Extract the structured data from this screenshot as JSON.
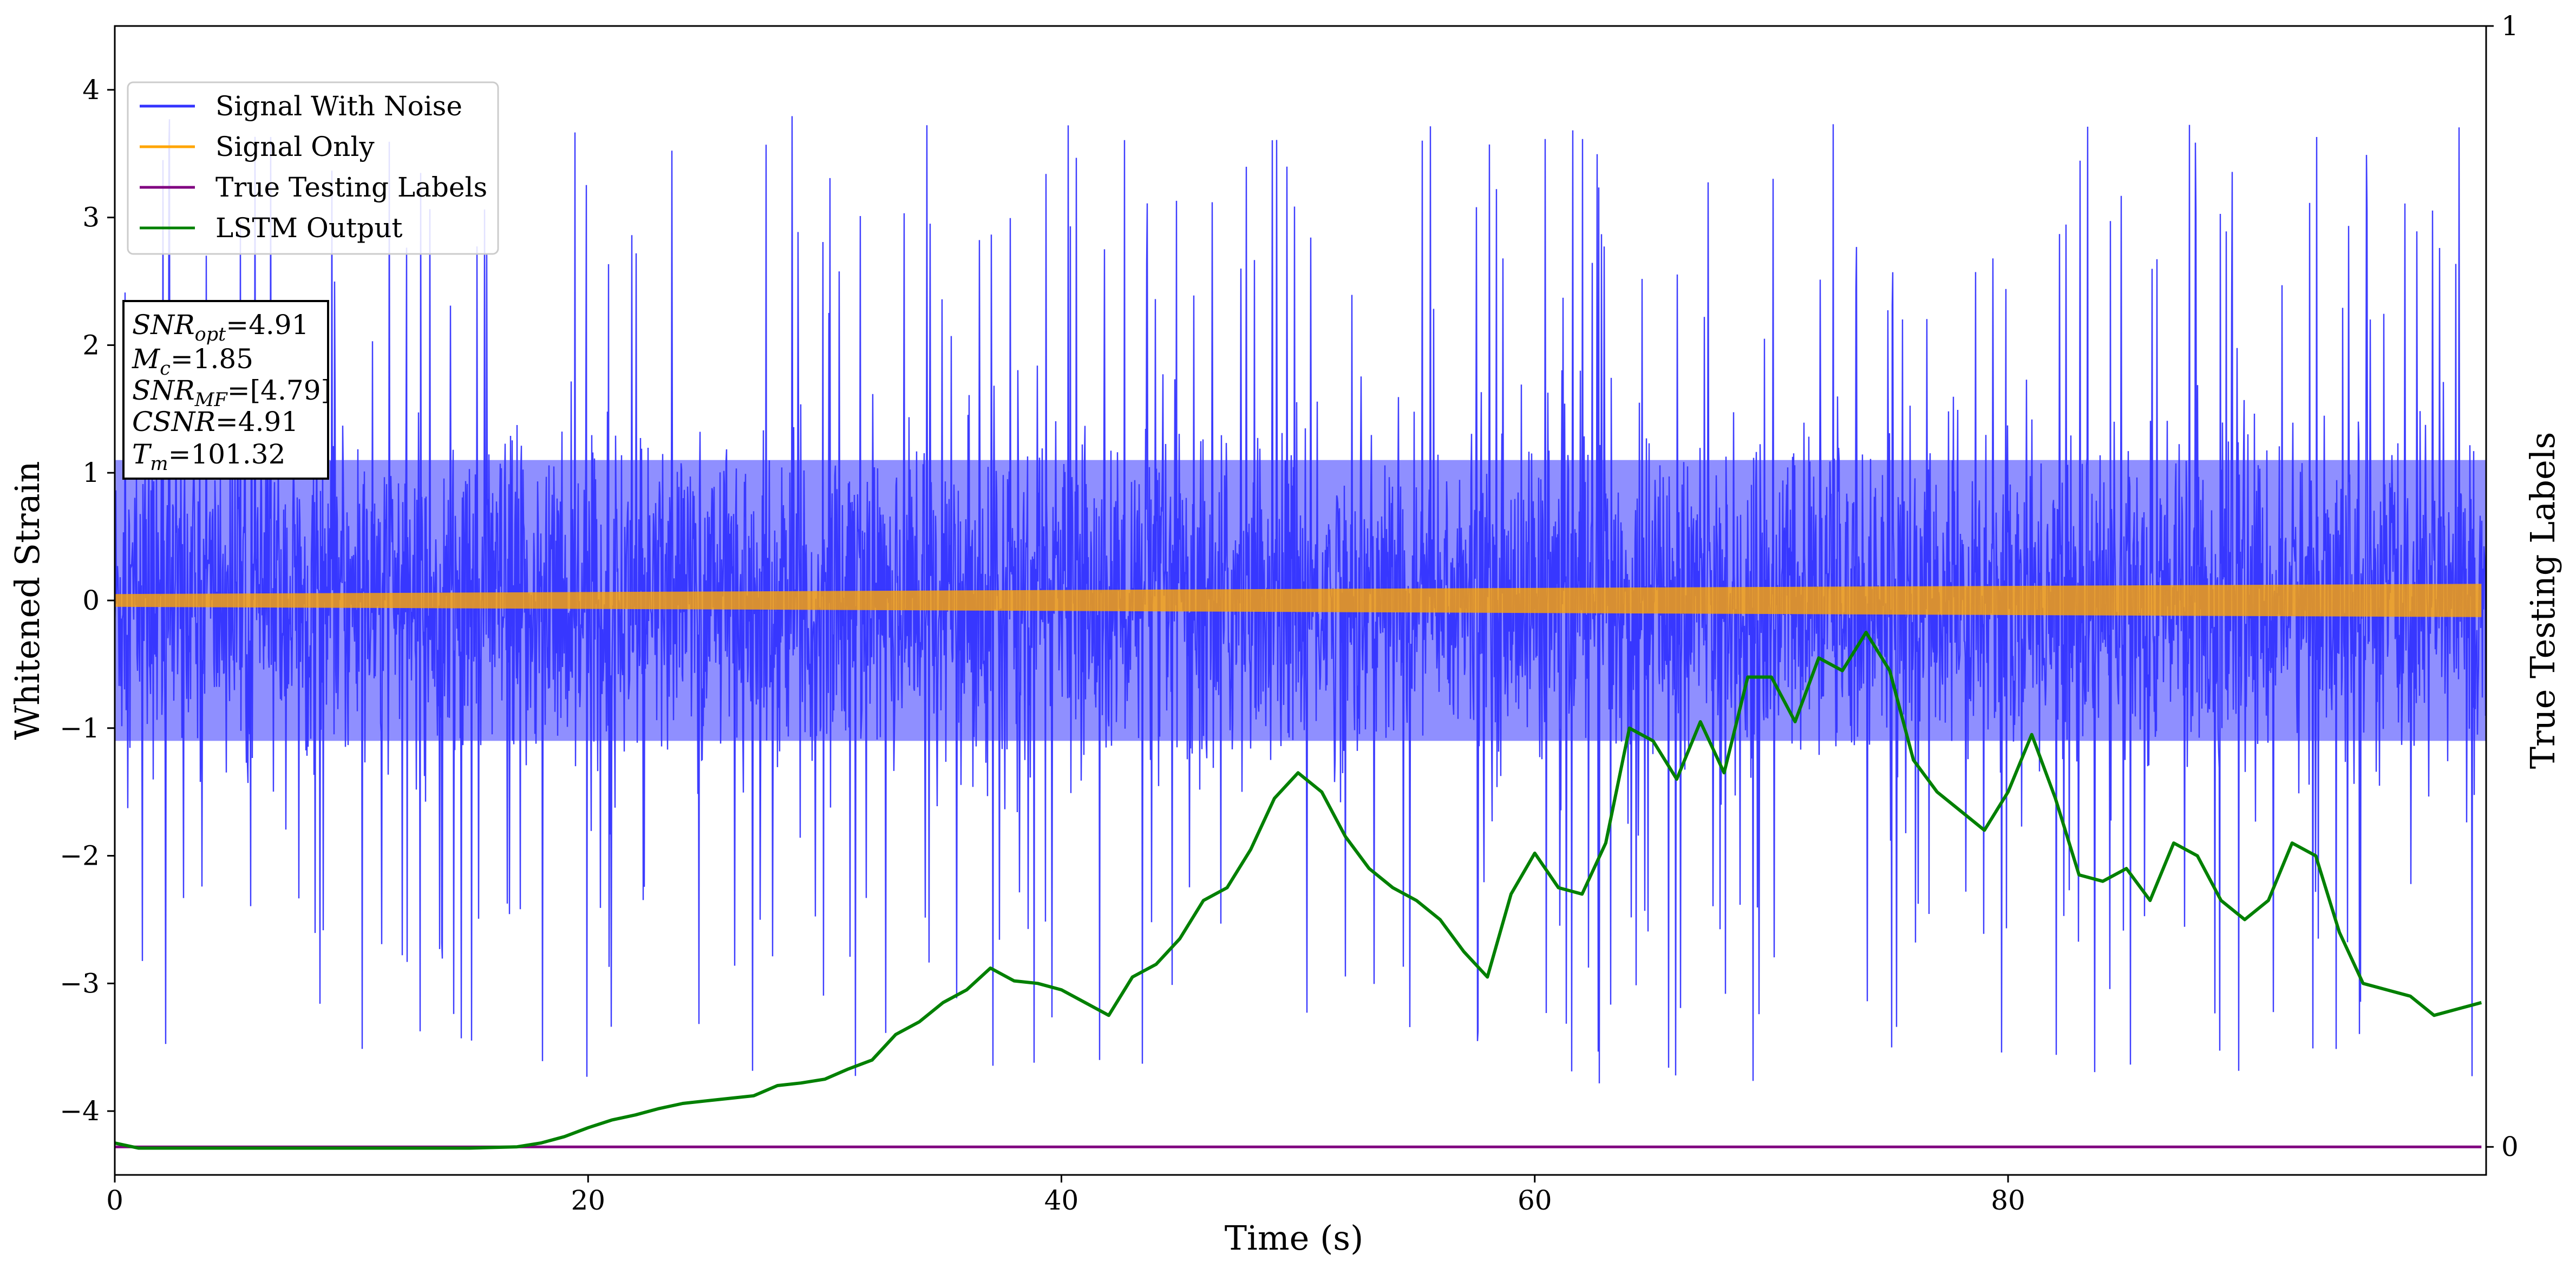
{
  "chart_data": {
    "type": "line",
    "xlabel": "Time (s)",
    "ylabel": "Whitened Strain",
    "ylabel_right": "True Testing Labels",
    "xlim": [
      0,
      100.2
    ],
    "ylim": [
      -4.5,
      4.5
    ],
    "ylim_right": [
      -0.025,
      1.0
    ],
    "x_ticks": [
      0,
      20,
      40,
      60,
      80
    ],
    "y_ticks": [
      -4,
      -3,
      -2,
      -1,
      0,
      1,
      2,
      3,
      4
    ],
    "y_ticks_right": [
      0,
      1
    ],
    "legend_position": "upper left",
    "grid": false,
    "series": [
      {
        "name": "Signal With Noise",
        "color": "#3333ff",
        "axis": "left",
        "description_values": {
          "typical_min": -2.0,
          "typical_max": 2.0,
          "peak_max": 4.05,
          "peak_min": -3.95
        }
      },
      {
        "name": "Signal Only",
        "color": "#ffa500",
        "axis": "left",
        "envelope": {
          "x": [
            0,
            100
          ],
          "amplitude": [
            0.05,
            0.13
          ]
        }
      },
      {
        "name": "True Testing Labels",
        "color": "#800080",
        "axis": "right",
        "x": [
          0,
          100
        ],
        "y": [
          0,
          0
        ]
      },
      {
        "name": "LSTM Output",
        "color": "#008000",
        "axis": "left",
        "x": [
          0,
          1,
          5,
          10,
          15,
          17,
          18,
          19,
          20,
          21,
          22,
          23,
          24,
          25,
          26,
          27,
          28,
          29,
          30,
          31,
          32,
          33,
          34,
          35,
          36,
          37,
          38,
          39,
          40,
          41,
          42,
          43,
          44,
          45,
          46,
          47,
          48,
          49,
          50,
          51,
          52,
          53,
          54,
          55,
          56,
          57,
          58,
          59,
          60,
          61,
          62,
          63,
          64,
          65,
          66,
          67,
          68,
          69,
          70,
          71,
          72,
          73,
          74,
          75,
          76,
          77,
          78,
          79,
          80,
          81,
          82,
          83,
          84,
          85,
          86,
          87,
          88,
          89,
          90,
          91,
          92,
          93,
          94,
          95,
          96,
          97,
          98,
          99,
          100
        ],
        "y": [
          -4.25,
          -4.29,
          -4.29,
          -4.29,
          -4.29,
          -4.28,
          -4.25,
          -4.2,
          -4.13,
          -4.07,
          -4.03,
          -3.98,
          -3.94,
          -3.92,
          -3.9,
          -3.88,
          -3.8,
          -3.78,
          -3.75,
          -3.67,
          -3.6,
          -3.4,
          -3.3,
          -3.15,
          -3.05,
          -2.88,
          -2.98,
          -3.0,
          -3.05,
          -3.15,
          -3.25,
          -2.95,
          -2.85,
          -2.65,
          -2.35,
          -2.25,
          -1.95,
          -1.55,
          -1.35,
          -1.5,
          -1.85,
          -2.1,
          -2.25,
          -2.35,
          -2.5,
          -2.75,
          -2.95,
          -2.3,
          -1.98,
          -2.25,
          -2.3,
          -1.9,
          -1.0,
          -1.1,
          -1.4,
          -0.95,
          -1.35,
          -0.6,
          -0.6,
          -0.95,
          -0.45,
          -0.55,
          -0.25,
          -0.55,
          -1.25,
          -1.5,
          -1.65,
          -1.8,
          -1.5,
          -1.05,
          -1.55,
          -2.15,
          -2.2,
          -2.1,
          -2.35,
          -1.9,
          -2.0,
          -2.35,
          -2.5,
          -2.35,
          -1.9,
          -2.0,
          -2.6,
          -3.0,
          -3.05,
          -3.1,
          -3.25,
          -3.2,
          -3.15
        ]
      }
    ],
    "annotation": {
      "snr_opt": {
        "label": "SNR",
        "sub": "opt",
        "value": "=4.91"
      },
      "mc": {
        "label": "M",
        "sub": "c",
        "value": "=1.85"
      },
      "snr_mf": {
        "label": "SNR",
        "sub": "MF",
        "value": "=[4.79]"
      },
      "csnr": {
        "label": "CSNR",
        "sub": "",
        "value": "=4.91"
      },
      "tm": {
        "label": "T",
        "sub": "m",
        "value": "=101.32"
      }
    }
  }
}
